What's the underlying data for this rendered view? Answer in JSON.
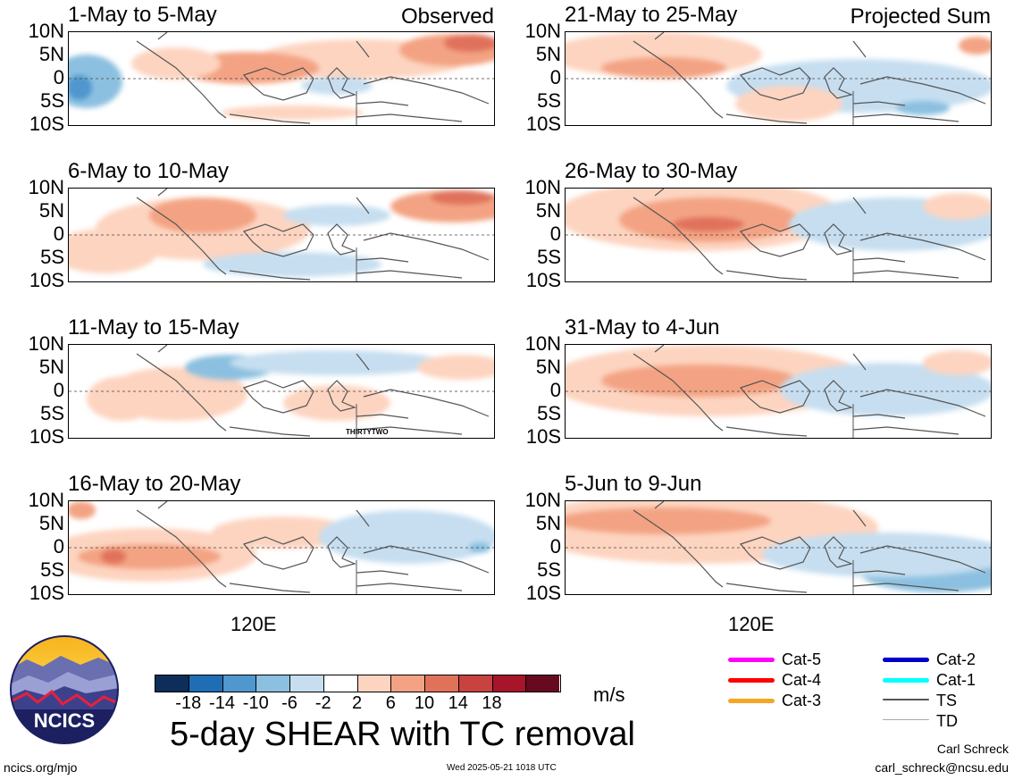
{
  "panels": [
    {
      "title": "1-May to 5-May",
      "note": "Observed"
    },
    {
      "title": "21-May to 25-May",
      "note": "Projected Sum"
    },
    {
      "title": "6-May to 10-May",
      "note": ""
    },
    {
      "title": "26-May to 30-May",
      "note": ""
    },
    {
      "title": "11-May to 15-May",
      "note": "",
      "storm": "THIRTYTWO"
    },
    {
      "title": "31-May to 4-Jun",
      "note": ""
    },
    {
      "title": "16-May to 20-May",
      "note": ""
    },
    {
      "title": "5-Jun to 9-Jun",
      "note": ""
    }
  ],
  "lat_labels": [
    "10N",
    "5N",
    "0",
    "5S",
    "10S"
  ],
  "lon_label": "120E",
  "colorbar": {
    "colors": [
      "#0d2d5a",
      "#1f6eb5",
      "#4f97ce",
      "#8cc0e0",
      "#c6def0",
      "#ffffff",
      "#fdd4c0",
      "#f3a383",
      "#e0725c",
      "#c84240",
      "#a8142a",
      "#670a1f"
    ],
    "ticks": [
      "-18",
      "-14",
      "-10",
      "-6",
      "-2",
      "2",
      "6",
      "10",
      "14",
      "18"
    ],
    "unit": "m/s"
  },
  "title": "5-day SHEAR with TC removal",
  "legend": [
    {
      "label": "Cat-5",
      "color": "#ff00ff"
    },
    {
      "label": "Cat-4",
      "color": "#ff0000"
    },
    {
      "label": "Cat-3",
      "color": "#f5a623"
    },
    {
      "label": "Cat-2",
      "color": "#0000cc"
    },
    {
      "label": "Cat-1",
      "color": "#00ffff"
    },
    {
      "label": "TS",
      "color": "#555555"
    },
    {
      "label": "TD",
      "color": "#aaaaaa"
    }
  ],
  "logo_text": "NCICS",
  "footer": {
    "site": "ncics.org/mjo",
    "timestamp": "Wed 2025-05-21 1018 UTC",
    "author": "Carl Schreck",
    "email": "carl_schreck@ncsu.edu"
  }
}
